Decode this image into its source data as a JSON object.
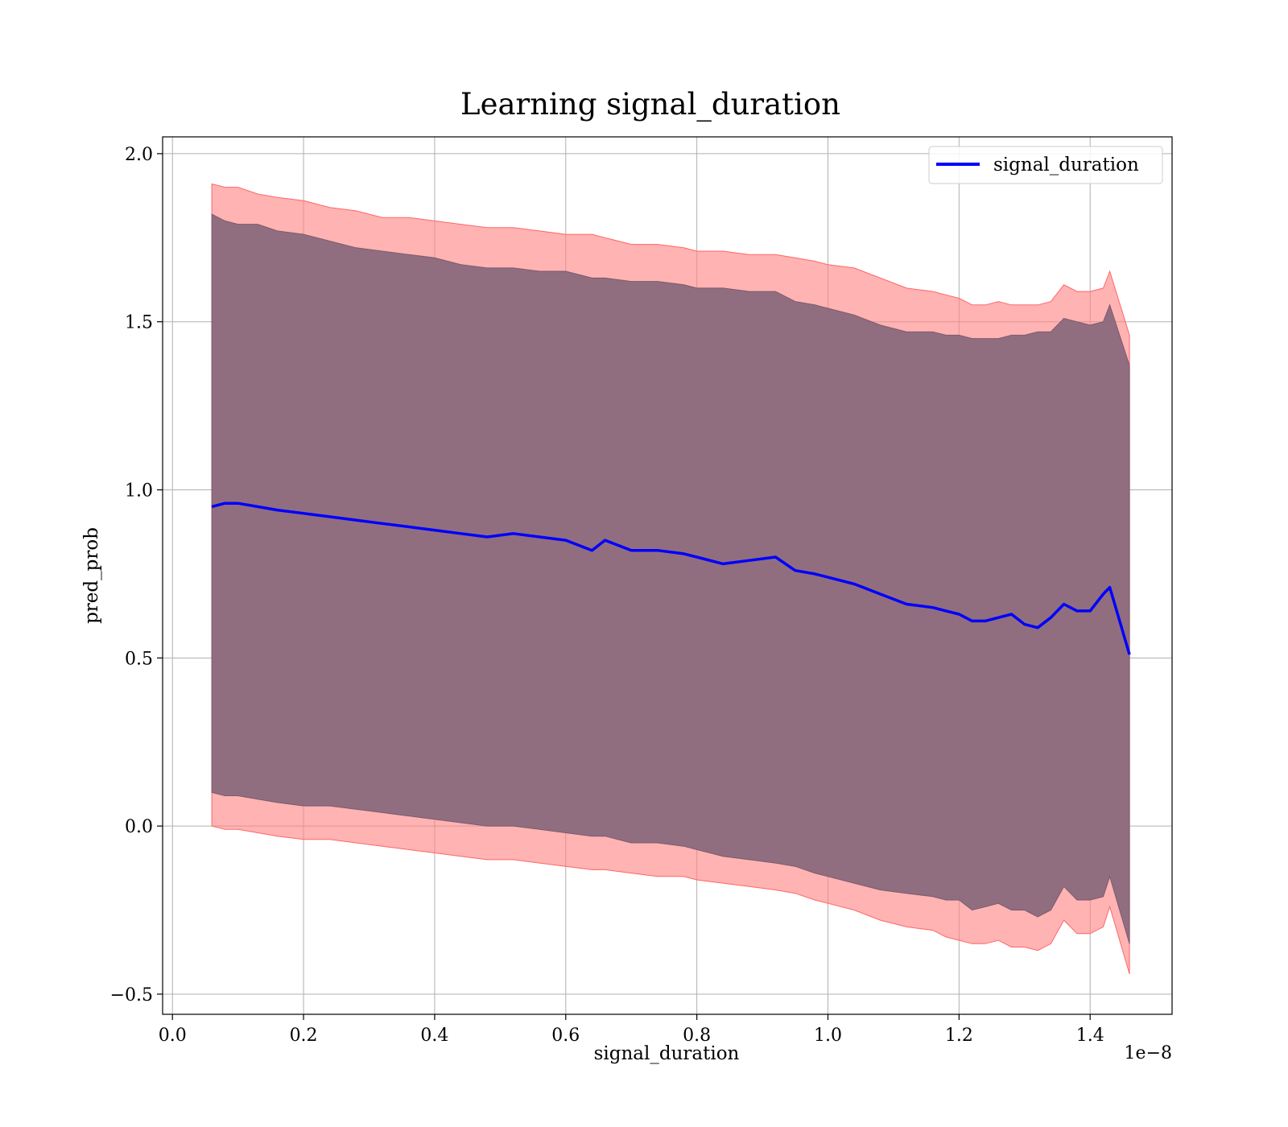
{
  "chart_data": {
    "type": "line",
    "title": "Learning signal_duration",
    "xlabel": "signal_duration",
    "ylabel": "pred_prob",
    "x_offset_text": "1e−8",
    "xlim": [
      -0.015,
      1.525
    ],
    "ylim": [
      -0.56,
      2.05
    ],
    "x_ticks": [
      0.0,
      0.2,
      0.4,
      0.6,
      0.8,
      1.0,
      1.2,
      1.4
    ],
    "x_tick_labels": [
      "0.0",
      "0.2",
      "0.4",
      "0.6",
      "0.8",
      "1.0",
      "1.2",
      "1.4"
    ],
    "y_ticks": [
      -0.5,
      0.0,
      0.5,
      1.0,
      1.5,
      2.0
    ],
    "y_tick_labels": [
      "−0.5",
      "0.0",
      "0.5",
      "1.0",
      "1.5",
      "2.0"
    ],
    "grid": true,
    "legend_position": "top-right",
    "colors": {
      "line": "#0000ff",
      "outer_band": "#ff8080",
      "inner_band": "#8b6a7c",
      "grid": "#b0b0b0"
    },
    "series": [
      {
        "name": "signal_duration",
        "x": [
          0.06,
          0.08,
          0.1,
          0.13,
          0.16,
          0.2,
          0.24,
          0.28,
          0.32,
          0.36,
          0.4,
          0.44,
          0.48,
          0.52,
          0.56,
          0.6,
          0.64,
          0.66,
          0.7,
          0.74,
          0.78,
          0.8,
          0.84,
          0.88,
          0.92,
          0.95,
          0.98,
          1.0,
          1.04,
          1.08,
          1.12,
          1.16,
          1.18,
          1.2,
          1.22,
          1.24,
          1.26,
          1.28,
          1.3,
          1.32,
          1.34,
          1.36,
          1.38,
          1.4,
          1.42,
          1.43,
          1.46
        ],
        "y": [
          0.95,
          0.96,
          0.96,
          0.95,
          0.94,
          0.93,
          0.92,
          0.91,
          0.9,
          0.89,
          0.88,
          0.87,
          0.86,
          0.87,
          0.86,
          0.85,
          0.82,
          0.85,
          0.82,
          0.82,
          0.81,
          0.8,
          0.78,
          0.79,
          0.8,
          0.76,
          0.75,
          0.74,
          0.72,
          0.69,
          0.66,
          0.65,
          0.64,
          0.63,
          0.61,
          0.61,
          0.62,
          0.63,
          0.6,
          0.59,
          0.62,
          0.66,
          0.64,
          0.64,
          0.69,
          0.71,
          0.51
        ],
        "band_outer_upper": [
          1.91,
          1.9,
          1.9,
          1.88,
          1.87,
          1.86,
          1.84,
          1.83,
          1.81,
          1.81,
          1.8,
          1.79,
          1.78,
          1.78,
          1.77,
          1.76,
          1.76,
          1.75,
          1.73,
          1.73,
          1.72,
          1.71,
          1.71,
          1.7,
          1.7,
          1.69,
          1.68,
          1.67,
          1.66,
          1.63,
          1.6,
          1.59,
          1.58,
          1.57,
          1.55,
          1.55,
          1.56,
          1.55,
          1.55,
          1.55,
          1.56,
          1.61,
          1.59,
          1.59,
          1.6,
          1.65,
          1.46
        ],
        "band_inner_upper": [
          1.82,
          1.8,
          1.79,
          1.79,
          1.77,
          1.76,
          1.74,
          1.72,
          1.71,
          1.7,
          1.69,
          1.67,
          1.66,
          1.66,
          1.65,
          1.65,
          1.63,
          1.63,
          1.62,
          1.62,
          1.61,
          1.6,
          1.6,
          1.59,
          1.59,
          1.56,
          1.55,
          1.54,
          1.52,
          1.49,
          1.47,
          1.47,
          1.46,
          1.46,
          1.45,
          1.45,
          1.45,
          1.46,
          1.46,
          1.47,
          1.47,
          1.51,
          1.5,
          1.49,
          1.5,
          1.55,
          1.37
        ],
        "band_inner_lower": [
          0.1,
          0.09,
          0.09,
          0.08,
          0.07,
          0.06,
          0.06,
          0.05,
          0.04,
          0.03,
          0.02,
          0.01,
          0.0,
          0.0,
          -0.01,
          -0.02,
          -0.03,
          -0.03,
          -0.05,
          -0.05,
          -0.06,
          -0.07,
          -0.09,
          -0.1,
          -0.11,
          -0.12,
          -0.14,
          -0.15,
          -0.17,
          -0.19,
          -0.2,
          -0.21,
          -0.22,
          -0.22,
          -0.25,
          -0.24,
          -0.23,
          -0.25,
          -0.25,
          -0.27,
          -0.25,
          -0.18,
          -0.22,
          -0.22,
          -0.21,
          -0.15,
          -0.35
        ],
        "band_outer_lower": [
          0.0,
          -0.01,
          -0.01,
          -0.02,
          -0.03,
          -0.04,
          -0.04,
          -0.05,
          -0.06,
          -0.07,
          -0.08,
          -0.09,
          -0.1,
          -0.1,
          -0.11,
          -0.12,
          -0.13,
          -0.13,
          -0.14,
          -0.15,
          -0.15,
          -0.16,
          -0.17,
          -0.18,
          -0.19,
          -0.2,
          -0.22,
          -0.23,
          -0.25,
          -0.28,
          -0.3,
          -0.31,
          -0.33,
          -0.34,
          -0.35,
          -0.35,
          -0.34,
          -0.36,
          -0.36,
          -0.37,
          -0.35,
          -0.28,
          -0.32,
          -0.32,
          -0.3,
          -0.24,
          -0.44
        ]
      }
    ]
  }
}
